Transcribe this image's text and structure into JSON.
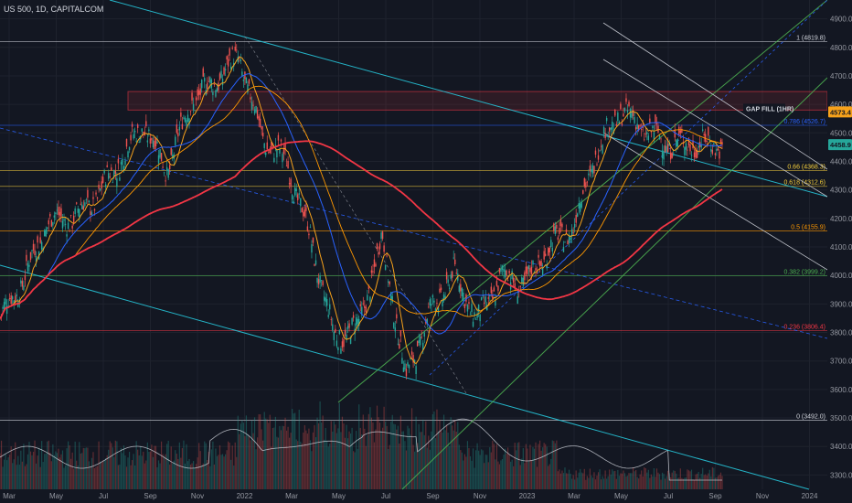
{
  "header": {
    "title": "US 500, 1D, CAPITALCOM"
  },
  "price_badges": {
    "gap_fill_label": "GAP FILL (1HR)",
    "gap_value": "4573.4",
    "last_value": "4458.9",
    "gap_color": "#f7a21b",
    "last_color": "#26a69a"
  },
  "colors": {
    "background": "#131722",
    "up": "#26a69a",
    "down": "#ef5350",
    "ma_fast": "#f7a21b",
    "ma_mid": "#2962ff",
    "ma_slow": "#f23645",
    "channel_green": "#4caf50",
    "trend_cyan": "#26c6da",
    "parallel_white": "#d1d4dc"
  },
  "chart_data": {
    "type": "candlestick",
    "title": "US 500, 1D, CAPITALCOM",
    "ylim": [
      3250,
      4950
    ],
    "y_ticks": [
      "4900.0",
      "4800.0",
      "4700.0",
      "4600.0",
      "4500.0",
      "4400.0",
      "4300.0",
      "4200.0",
      "4100.0",
      "4000.0",
      "3900.0",
      "3800.0",
      "3700.0",
      "3600.0",
      "3500.0",
      "3400.0",
      "3300.0"
    ],
    "x_ticks": [
      "Mar",
      "May",
      "Jul",
      "Sep",
      "Nov",
      "2022",
      "Mar",
      "May",
      "Jul",
      "Sep",
      "Nov",
      "2023",
      "Mar",
      "May",
      "Jul",
      "Sep",
      "Nov",
      "2024"
    ],
    "fib_levels": [
      {
        "label": "1 (4819.8)",
        "value": 4819.8,
        "color": "#d1d4dc"
      },
      {
        "label": "0.786 (4526.7)",
        "value": 4526.7,
        "color": "#2962ff"
      },
      {
        "label": "0.66 (4368.3)",
        "value": 4368.3,
        "color": "#f7d03c"
      },
      {
        "label": "0.618 (4312.6)",
        "value": 4312.6,
        "color": "#f7d03c"
      },
      {
        "label": "0.5 (4155.9)",
        "value": 4155.9,
        "color": "#ff9800"
      },
      {
        "label": "0.382 (3999.2)",
        "value": 3999.2,
        "color": "#4caf50"
      },
      {
        "label": "0.236 (3806.4)",
        "value": 3806.4,
        "color": "#f23645"
      },
      {
        "label": "0 (3492.0)",
        "value": 3492.0,
        "color": "#d1d4dc"
      }
    ],
    "gap_zone": [
      4580,
      4645
    ],
    "price_path": {
      "month_index": [
        0,
        1,
        2,
        3,
        4,
        5,
        6,
        7,
        8,
        9,
        10,
        11,
        12,
        13,
        14,
        15,
        16,
        17,
        18,
        19,
        20,
        21,
        22,
        23,
        24,
        25,
        26,
        27,
        28,
        29,
        30,
        31
      ],
      "close": [
        3850,
        3990,
        4190,
        4200,
        4270,
        4400,
        4530,
        4370,
        4610,
        4680,
        4770,
        4480,
        4400,
        4130,
        3780,
        3820,
        4130,
        3640,
        3870,
        4010,
        3840,
        4000,
        3970,
        4100,
        4170,
        4440,
        4580,
        4510,
        4460,
        4460,
        4460,
        4460
      ]
    },
    "sample_months": 30.3,
    "last_price": 4458.9
  }
}
